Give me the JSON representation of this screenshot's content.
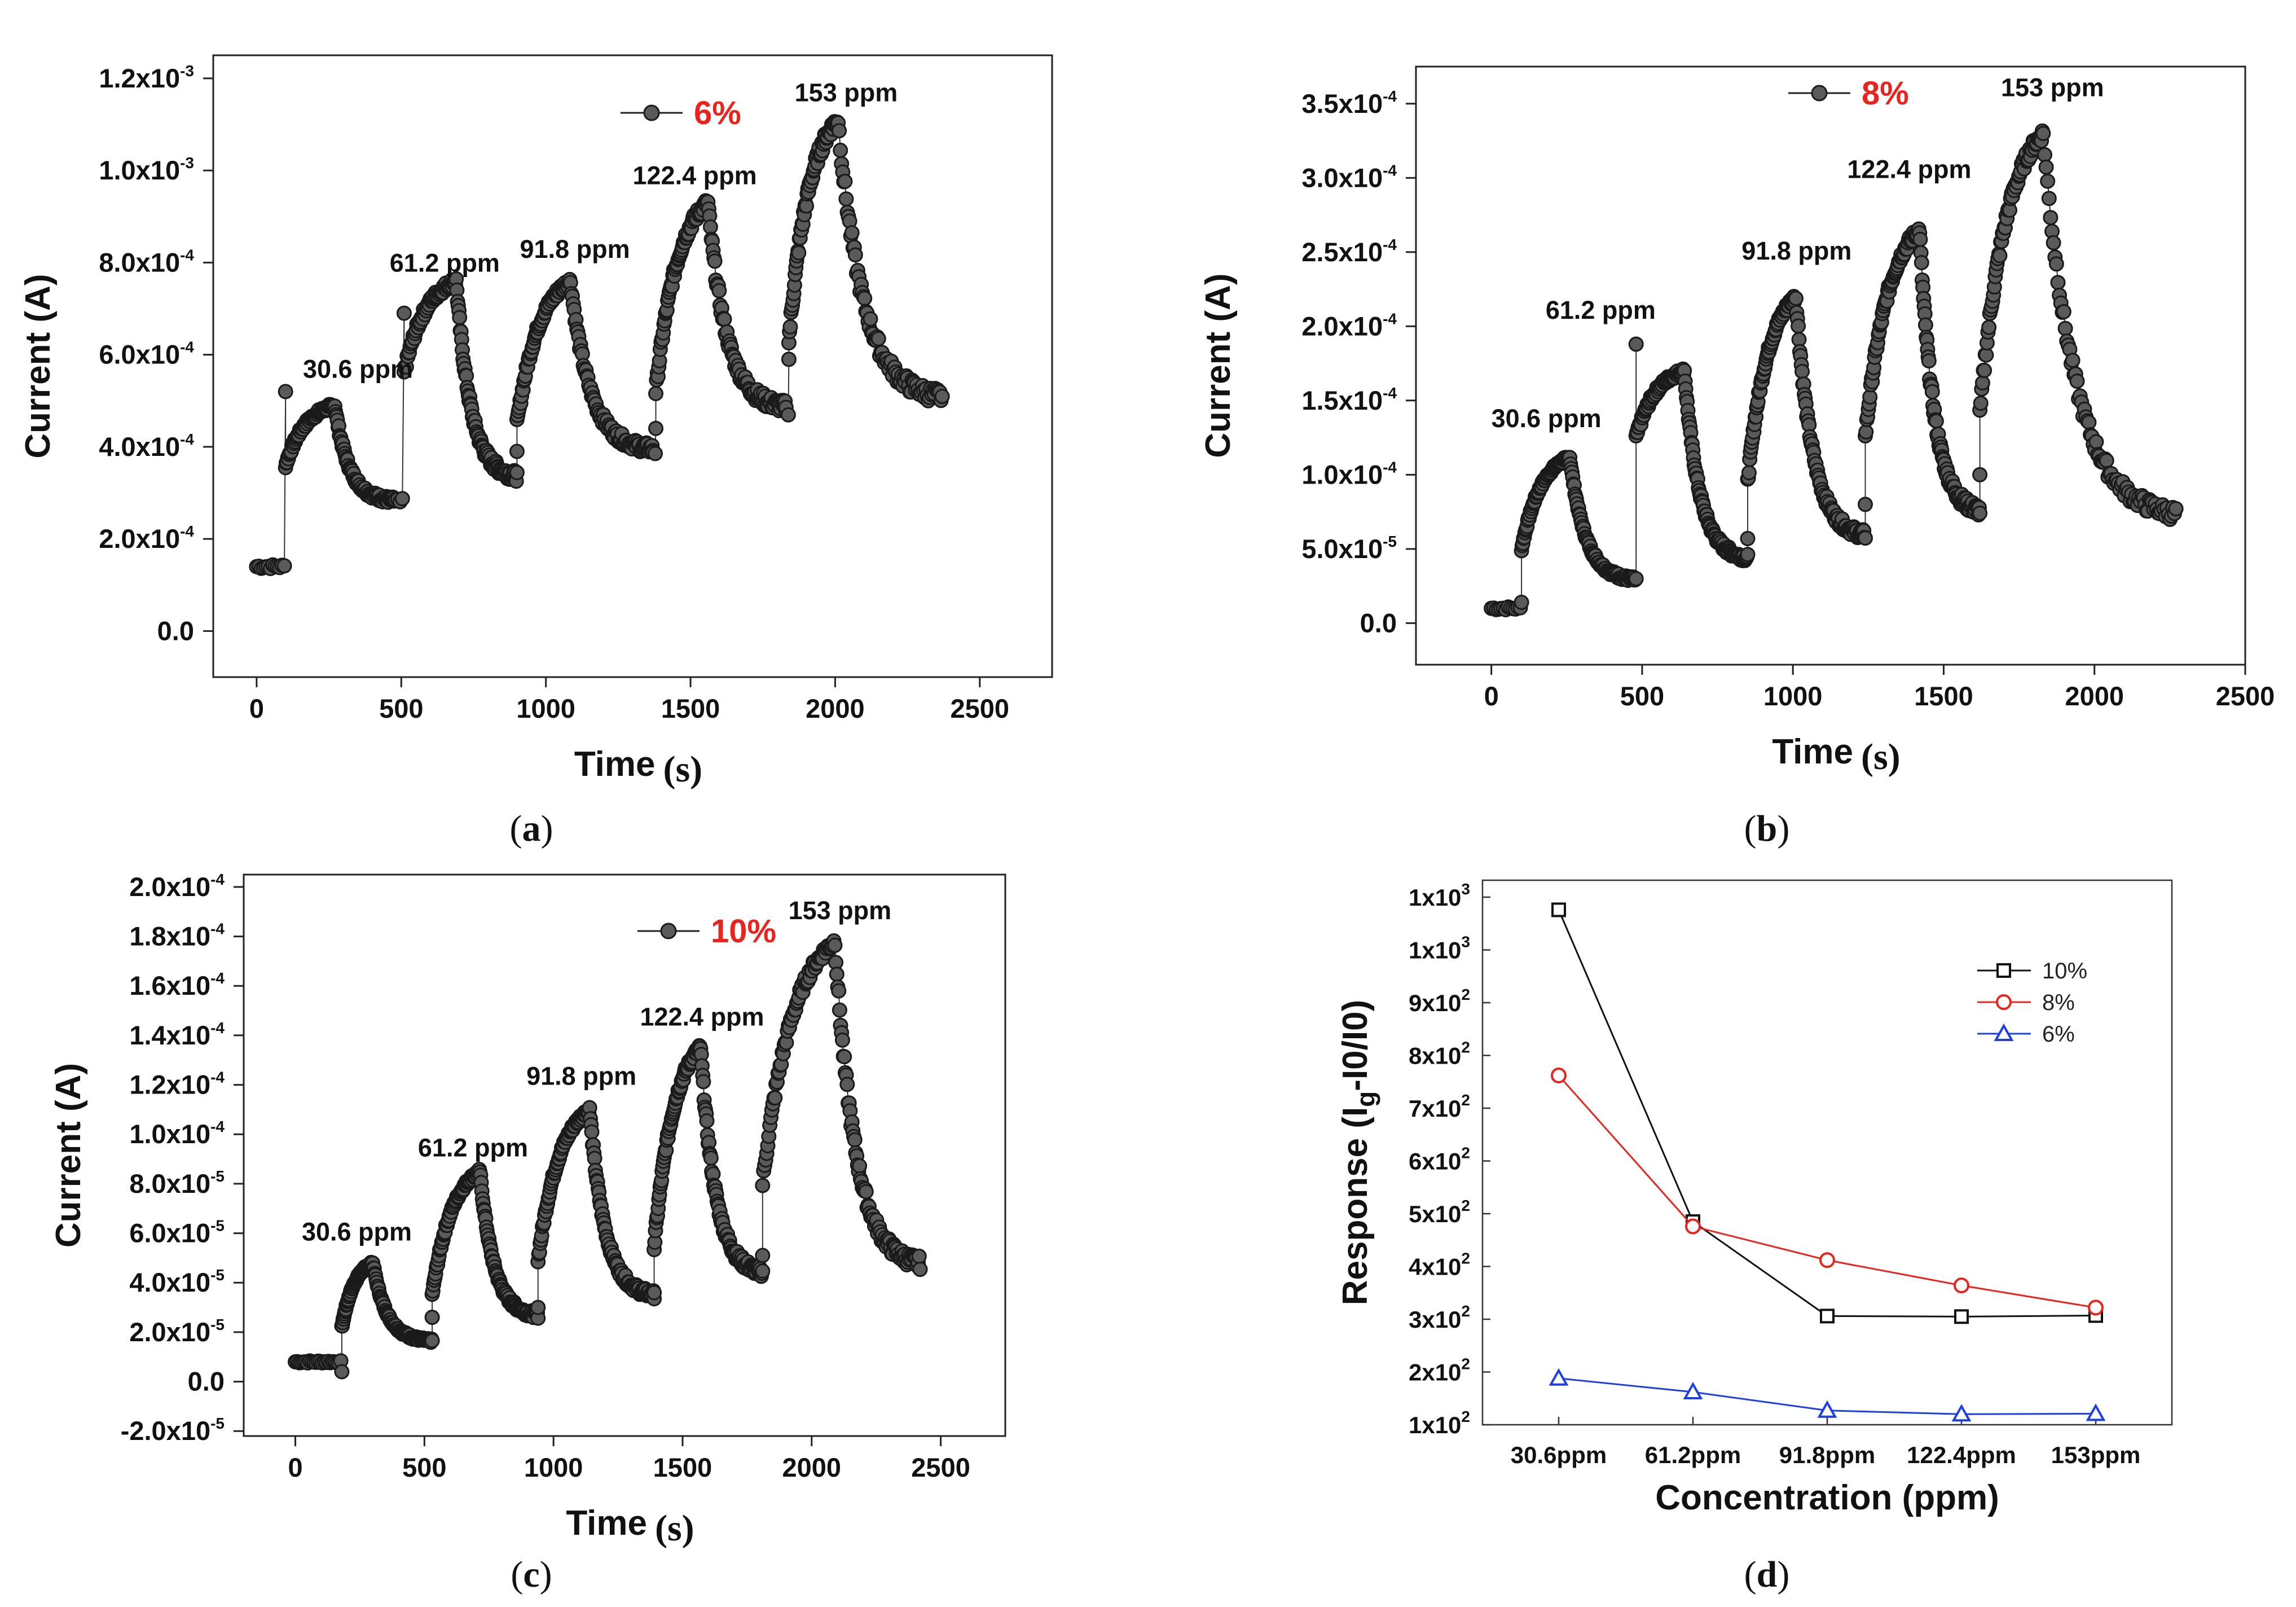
{
  "chart_data": [
    {
      "id": "a",
      "type": "scatter",
      "panel_label": "a",
      "xlabel": "Time",
      "xunit": "s",
      "ylabel": "Current (A)",
      "xlim": [
        -150,
        2750
      ],
      "ylim": [
        -0.0001,
        0.00125
      ],
      "xticks": [
        0,
        500,
        1000,
        1500,
        2000,
        2500
      ],
      "xtick_labels": [
        "0",
        "500",
        "1000",
        "1500",
        "2000",
        "2500"
      ],
      "yticks": [
        0,
        0.0002,
        0.0004,
        0.0006,
        0.0008,
        0.001,
        0.0012
      ],
      "ytick_labels": [
        {
          "mant": "0.0",
          "exp": ""
        },
        {
          "mant": "2.0x10",
          "exp": "-4"
        },
        {
          "mant": "4.0x10",
          "exp": "-4"
        },
        {
          "mant": "6.0x10",
          "exp": "-4"
        },
        {
          "mant": "8.0x10",
          "exp": "-4"
        },
        {
          "mant": "1.0x10",
          "exp": "-3"
        },
        {
          "mant": "1.2x10",
          "exp": "-3"
        }
      ],
      "legend": "6%",
      "annotations": [
        {
          "text": "30.6 ppm",
          "x": 160,
          "y": 0.00055
        },
        {
          "text": "61.2 ppm",
          "x": 460,
          "y": 0.00078
        },
        {
          "text": "91.8 ppm",
          "x": 910,
          "y": 0.00081
        },
        {
          "text": "122.4 ppm",
          "x": 1300,
          "y": 0.00097
        },
        {
          "text": "153 ppm",
          "x": 1860,
          "y": 0.00115
        }
      ],
      "cycles": [
        {
          "t0": 0,
          "ton": 100,
          "toff": 270,
          "tend": 480,
          "base": 0.00014,
          "spike": 0.00052,
          "low": 0.00036,
          "peak": 0.00049,
          "rec": 0.00028
        },
        {
          "t0": 480,
          "ton": 510,
          "toff": 690,
          "tend": 900,
          "base": 0.00028,
          "spike": 0.00069,
          "low": 0.00056,
          "peak": 0.00076,
          "rec": 0.00033
        },
        {
          "t0": 900,
          "ton": 900,
          "toff": 1085,
          "tend": 1370,
          "base": 0.00033,
          "spike": 0.00039,
          "low": 0.00045,
          "peak": 0.00076,
          "rec": 0.00039
        },
        {
          "t0": 1370,
          "ton": 1380,
          "toff": 1560,
          "tend": 1830,
          "base": 0.00039,
          "spike": 0.00044,
          "low": 0.00052,
          "peak": 0.00093,
          "rec": 0.00048
        },
        {
          "t0": 1830,
          "ton": 1840,
          "toff": 2010,
          "tend": 2370,
          "base": 0.00048,
          "spike": 0.00059,
          "low": 0.00063,
          "peak": 0.00111,
          "rec": 0.0005
        }
      ]
    },
    {
      "id": "b",
      "type": "scatter",
      "panel_label": "b",
      "xlabel": "Time",
      "xunit": "s",
      "ylabel": "Current (A)",
      "xlim": [
        -250,
        2500
      ],
      "ylim": [
        -2.8e-05,
        0.000375
      ],
      "xticks": [
        0,
        500,
        1000,
        1500,
        2000,
        2500
      ],
      "xtick_labels": [
        "0",
        "500",
        "1000",
        "1500",
        "2000",
        "2500"
      ],
      "yticks": [
        0,
        5e-05,
        0.0001,
        0.00015,
        0.0002,
        0.00025,
        0.0003,
        0.00035
      ],
      "ytick_labels": [
        {
          "mant": "0.0",
          "exp": ""
        },
        {
          "mant": "5.0x10",
          "exp": "-5"
        },
        {
          "mant": "1.0x10",
          "exp": "-4"
        },
        {
          "mant": "1.5x10",
          "exp": "-4"
        },
        {
          "mant": "2.0x10",
          "exp": "-4"
        },
        {
          "mant": "2.5x10",
          "exp": "-4"
        },
        {
          "mant": "3.0x10",
          "exp": "-4"
        },
        {
          "mant": "3.5x10",
          "exp": "-4"
        }
      ],
      "legend": "8%",
      "annotations": [
        {
          "text": "30.6 ppm",
          "x": 0,
          "y": 0.000132
        },
        {
          "text": "61.2 ppm",
          "x": 180,
          "y": 0.000205
        },
        {
          "text": "91.8 ppm",
          "x": 830,
          "y": 0.000245
        },
        {
          "text": "122.4 ppm",
          "x": 1180,
          "y": 0.0003
        },
        {
          "text": "153 ppm",
          "x": 1690,
          "y": 0.000355
        }
      ],
      "cycles": [
        {
          "t0": 0,
          "ton": 100,
          "toff": 260,
          "tend": 480,
          "base": 1e-05,
          "spike": 1.4e-05,
          "low": 5e-05,
          "peak": 0.000112,
          "rec": 2.8e-05
        },
        {
          "t0": 480,
          "ton": 480,
          "toff": 640,
          "tend": 850,
          "base": 2.8e-05,
          "spike": 0.000188,
          "low": 0.000125,
          "peak": 0.00017,
          "rec": 4.2e-05
        },
        {
          "t0": 850,
          "ton": 850,
          "toff": 1010,
          "tend": 1240,
          "base": 4.2e-05,
          "spike": 5.7e-05,
          "low": 9.5e-05,
          "peak": 0.00022,
          "rec": 5.7e-05
        },
        {
          "t0": 1240,
          "ton": 1240,
          "toff": 1420,
          "tend": 1620,
          "base": 5.7e-05,
          "spike": 8e-05,
          "low": 0.000125,
          "peak": 0.000265,
          "rec": 7.3e-05
        },
        {
          "t0": 1620,
          "ton": 1620,
          "toff": 1830,
          "tend": 2270,
          "base": 7.3e-05,
          "spike": 0.0001,
          "low": 0.00014,
          "peak": 0.00033,
          "rec": 7e-05
        }
      ]
    },
    {
      "id": "c",
      "type": "scatter",
      "panel_label": "c",
      "xlabel": "Time",
      "xunit": "s",
      "ylabel": "Current (A)",
      "xlim": [
        -200,
        2750
      ],
      "ylim": [
        -2.2e-05,
        0.000205
      ],
      "xticks": [
        0,
        500,
        1000,
        1500,
        2000,
        2500
      ],
      "xtick_labels": [
        "0",
        "500",
        "1000",
        "1500",
        "2000",
        "2500"
      ],
      "yticks": [
        -2e-05,
        0,
        2e-05,
        4e-05,
        6e-05,
        8e-05,
        0.0001,
        0.00012,
        0.00014,
        0.00016,
        0.00018,
        0.0002
      ],
      "ytick_labels": [
        {
          "mant": "-2.0x10",
          "exp": "-5"
        },
        {
          "mant": "0.0",
          "exp": ""
        },
        {
          "mant": "2.0x10",
          "exp": "-5"
        },
        {
          "mant": "4.0x10",
          "exp": "-5"
        },
        {
          "mant": "6.0x10",
          "exp": "-5"
        },
        {
          "mant": "8.0x10",
          "exp": "-5"
        },
        {
          "mant": "1.0x10",
          "exp": "-4"
        },
        {
          "mant": "1.2x10",
          "exp": "-4"
        },
        {
          "mant": "1.4x10",
          "exp": "-4"
        },
        {
          "mant": "1.6x10",
          "exp": "-4"
        },
        {
          "mant": "1.8x10",
          "exp": "-4"
        },
        {
          "mant": "2.0x10",
          "exp": "-4"
        }
      ],
      "legend": "10%",
      "annotations": [
        {
          "text": "30.6 ppm",
          "x": 25,
          "y": 5.7e-05
        },
        {
          "text": "61.2 ppm",
          "x": 475,
          "y": 9.1e-05
        },
        {
          "text": "91.8 ppm",
          "x": 895,
          "y": 0.00012
        },
        {
          "text": "122.4 ppm",
          "x": 1335,
          "y": 0.000144
        },
        {
          "text": "153 ppm",
          "x": 1910,
          "y": 0.000187
        }
      ],
      "cycles": [
        {
          "t0": 0,
          "ton": 180,
          "toff": 300,
          "tend": 530,
          "base": 8e-06,
          "spike": 4e-06,
          "low": 2.2e-05,
          "peak": 4.8e-05,
          "rec": 1.6e-05
        },
        {
          "t0": 530,
          "ton": 530,
          "toff": 715,
          "tend": 940,
          "base": 1.6e-05,
          "spike": 2.6e-05,
          "low": 3.5e-05,
          "peak": 8.5e-05,
          "rec": 2.6e-05
        },
        {
          "t0": 940,
          "ton": 940,
          "toff": 1140,
          "tend": 1390,
          "base": 2.6e-05,
          "spike": 3e-05,
          "low": 4.9e-05,
          "peak": 0.00011,
          "rec": 3.4e-05
        },
        {
          "t0": 1390,
          "ton": 1390,
          "toff": 1570,
          "tend": 1810,
          "base": 3.4e-05,
          "spike": 3.6e-05,
          "low": 5.4e-05,
          "peak": 0.000135,
          "rec": 4.3e-05
        },
        {
          "t0": 1810,
          "ton": 1810,
          "toff": 2090,
          "tend": 2420,
          "base": 4.3e-05,
          "spike": 5.1e-05,
          "low": 8e-05,
          "peak": 0.000178,
          "rec": 4.6e-05
        }
      ]
    },
    {
      "id": "d",
      "type": "line",
      "panel_label": "d",
      "xlabel": "Concentration (ppm)",
      "ylabel_parts": [
        "Response (I",
        "g",
        "-I0/I0)"
      ],
      "categories": [
        "30.6ppm",
        "61.2ppm",
        "91.8ppm",
        "122.4ppm",
        "153ppm"
      ],
      "ylim": [
        100,
        1100
      ],
      "yticks": [
        100,
        200,
        300,
        400,
        500,
        600,
        700,
        800,
        900,
        1000,
        1100
      ],
      "ytick_labels": [
        {
          "mant": "1x10",
          "exp": "2"
        },
        {
          "mant": "2x10",
          "exp": "2"
        },
        {
          "mant": "3x10",
          "exp": "2"
        },
        {
          "mant": "4x10",
          "exp": "2"
        },
        {
          "mant": "5x10",
          "exp": "2"
        },
        {
          "mant": "6x10",
          "exp": "2"
        },
        {
          "mant": "7x10",
          "exp": "2"
        },
        {
          "mant": "8x10",
          "exp": "2"
        },
        {
          "mant": "9x10",
          "exp": "2"
        },
        {
          "mant": "1x10",
          "exp": "3"
        },
        {
          "mant": "1x10",
          "exp": "3"
        }
      ],
      "legend_position": "top-right",
      "series": [
        {
          "name": "10%",
          "color": "#111111",
          "marker": "square",
          "values": [
            1076,
            485,
            306,
            305,
            307
          ]
        },
        {
          "name": "8%",
          "color": "#e8241c",
          "marker": "circle",
          "values": [
            762,
            476,
            412,
            364,
            322
          ]
        },
        {
          "name": "6%",
          "color": "#1f3fe0",
          "marker": "triangle",
          "values": [
            188,
            162,
            127,
            120,
            121
          ]
        }
      ]
    }
  ]
}
